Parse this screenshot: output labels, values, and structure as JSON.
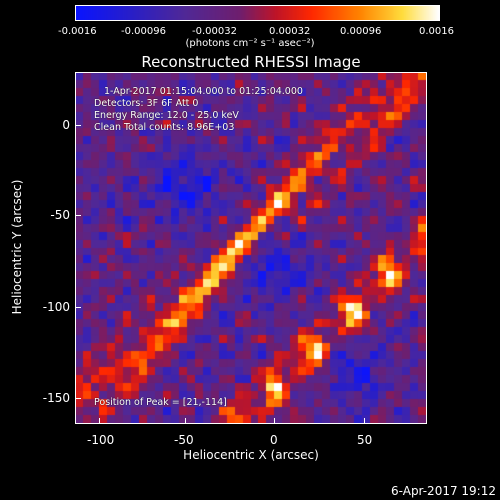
{
  "colorbar": {
    "ticks": [
      "-0.0016",
      "-0.00096",
      "-0.00032",
      "0.00032",
      "0.00096",
      "0.0016"
    ],
    "units": "(photons cm⁻² s⁻¹ asec⁻²)"
  },
  "title": "Reconstructed RHESSI Image",
  "info": {
    "line1": "1-Apr-2017 01:15:04.000 to 01:25:04.000",
    "line2": "Detectors: 3F 6F  Att 0",
    "line3": "Energy Range: 12.0 - 25.0 keV",
    "line4": "Clean     Total counts: 8.96E+03",
    "peak": "Position of Peak = [21,-114]"
  },
  "axes": {
    "xlabel": "Heliocentric X (arcsec)",
    "ylabel": "Heliocentric Y (arcsec)",
    "xticks": [
      "-100",
      "-50",
      "0",
      "50"
    ],
    "yticks": [
      "0",
      "-50",
      "-100",
      "-150"
    ]
  },
  "timestamp": "6-Apr-2017 19:12"
}
